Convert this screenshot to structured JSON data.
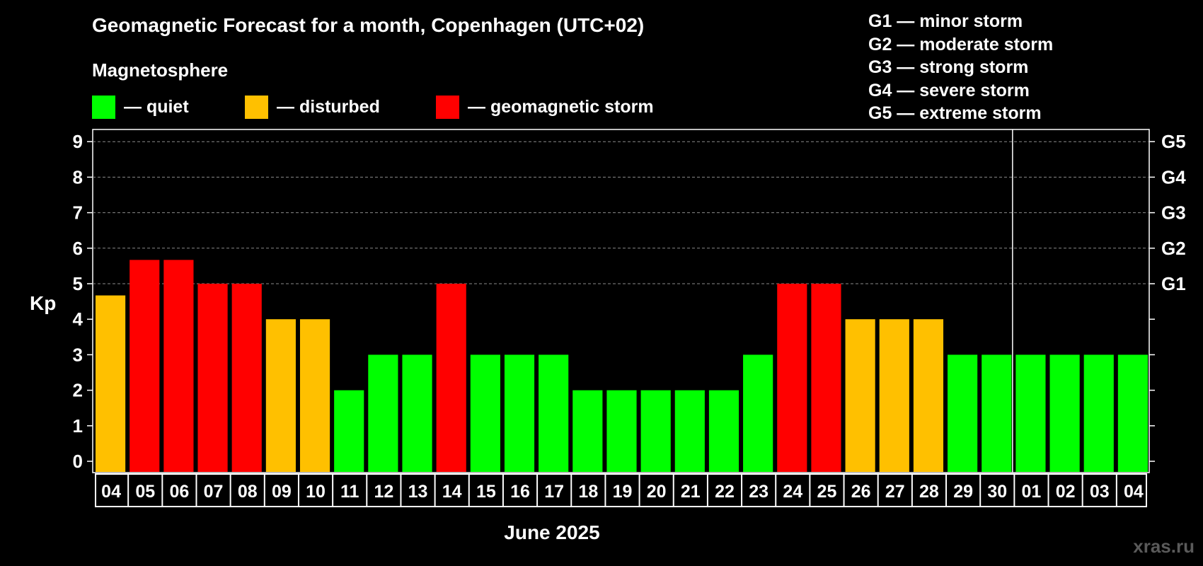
{
  "title": "Geomagnetic Forecast for a month, Copenhagen (UTC+02)",
  "legend": {
    "heading": "Magnetosphere",
    "items": [
      {
        "label": "— quiet",
        "color": "#00ff00"
      },
      {
        "label": "— disturbed",
        "color": "#ffc000"
      },
      {
        "label": "— geomagnetic storm",
        "color": "#ff0000"
      }
    ]
  },
  "g_scale": [
    "G1 — minor storm",
    "G2 — moderate storm",
    "G3 — strong storm",
    "G4 — severe storm",
    "G5 — extreme storm"
  ],
  "watermark": "xras.ru",
  "colors": {
    "quiet": "#00ff00",
    "disturbed": "#ffc000",
    "storm": "#ff0000",
    "background": "#000000",
    "foreground": "#ffffff"
  },
  "chart_data": {
    "type": "bar",
    "xlabel": "June 2025",
    "ylabel": "Kp",
    "ylim": [
      0,
      9
    ],
    "yticks": [
      "0",
      "1",
      "2",
      "3",
      "4",
      "5",
      "6",
      "7",
      "8",
      "9"
    ],
    "y2_labels": [
      {
        "value": 5,
        "label": "G1"
      },
      {
        "value": 6,
        "label": "G2"
      },
      {
        "value": 7,
        "label": "G3"
      },
      {
        "value": 8,
        "label": "G4"
      },
      {
        "value": 9,
        "label": "G5"
      }
    ],
    "grid": "dashed horizontal at Kp 5–9",
    "month_divider_after": "30",
    "categories": [
      "04",
      "05",
      "06",
      "07",
      "08",
      "09",
      "10",
      "11",
      "12",
      "13",
      "14",
      "15",
      "16",
      "17",
      "18",
      "19",
      "20",
      "21",
      "22",
      "23",
      "24",
      "25",
      "26",
      "27",
      "28",
      "29",
      "30",
      "01",
      "02",
      "03",
      "04"
    ],
    "values": [
      4.67,
      5.67,
      5.67,
      5,
      5,
      4,
      4,
      2,
      3,
      3,
      5,
      3,
      3,
      3,
      2,
      2,
      2,
      2,
      2,
      3,
      5,
      5,
      4,
      4,
      4,
      3,
      3,
      3,
      3,
      3,
      3
    ],
    "levels": [
      "disturbed",
      "storm",
      "storm",
      "storm",
      "storm",
      "disturbed",
      "disturbed",
      "quiet",
      "quiet",
      "quiet",
      "storm",
      "quiet",
      "quiet",
      "quiet",
      "quiet",
      "quiet",
      "quiet",
      "quiet",
      "quiet",
      "quiet",
      "storm",
      "storm",
      "disturbed",
      "disturbed",
      "disturbed",
      "quiet",
      "quiet",
      "quiet",
      "quiet",
      "quiet",
      "quiet"
    ]
  }
}
